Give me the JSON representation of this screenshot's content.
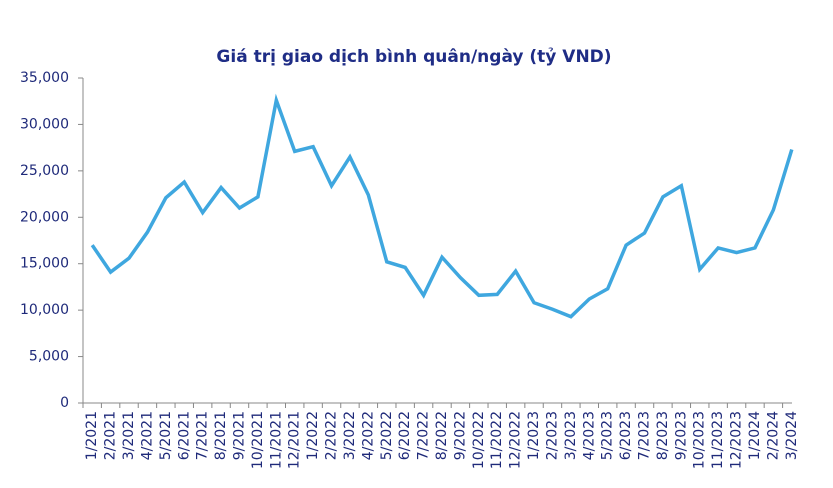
{
  "chart_data": {
    "type": "line",
    "title": "Giá trị giao dịch bình quân/ngày  (tỷ VND)",
    "categories": [
      "1/2021",
      "2/2021",
      "3/2021",
      "4/2021",
      "5/2021",
      "6/2021",
      "7/2021",
      "8/2021",
      "9/2021",
      "10/2021",
      "11/2021",
      "12/2021",
      "1/2022",
      "2/2022",
      "3/2022",
      "4/2022",
      "5/2022",
      "6/2022",
      "7/2022",
      "8/2022",
      "9/2022",
      "10/2022",
      "11/2022",
      "12/2022",
      "1/2023",
      "2/2023",
      "3/2023",
      "4/2023",
      "5/2023",
      "6/2023",
      "7/2023",
      "8/2023",
      "9/2023",
      "10/2023",
      "11/2023",
      "12/2023",
      "1/2024",
      "2/2024",
      "3/2024"
    ],
    "series": [
      {
        "color": "#3fa7df",
        "values": [
          17000,
          14100,
          15600,
          18400,
          22100,
          23800,
          20500,
          23200,
          21000,
          22200,
          32600,
          27100,
          27600,
          23400,
          26500,
          22400,
          15200,
          14600,
          11600,
          15700,
          13500,
          11600,
          11700,
          14200,
          10800,
          10100,
          9300,
          11200,
          12300,
          17000,
          18300,
          22200,
          23400,
          14400,
          16700,
          16200,
          16700,
          20800,
          27300
        ]
      }
    ],
    "ylim": [
      0,
      35000
    ],
    "yticks": [
      0,
      {
        "value": 5000,
        "label": "5,000"
      },
      {
        "value": 10000,
        "label": "10,000"
      },
      {
        "value": 15000,
        "label": "15,000"
      },
      {
        "value": 20000,
        "label": "20,000"
      },
      {
        "value": 25000,
        "label": "25,000"
      },
      {
        "value": 30000,
        "label": "30,000"
      },
      {
        "value": 35000,
        "label": "35,000"
      }
    ],
    "grid": false
  }
}
